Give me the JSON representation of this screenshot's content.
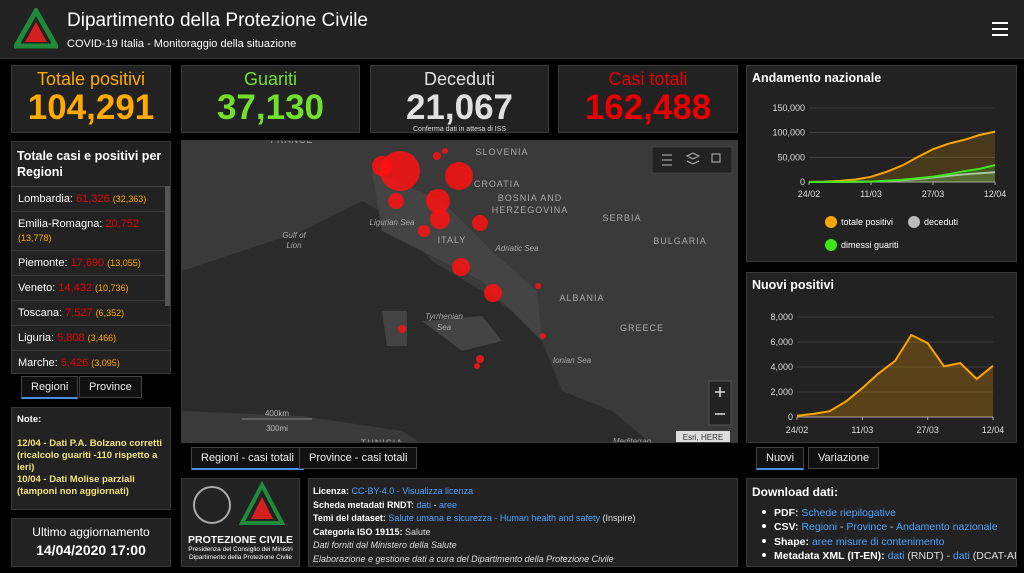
{
  "header": {
    "title": "Dipartimento della Protezione Civile",
    "subtitle": "COVID-19 Italia - Monitoraggio della situazione"
  },
  "cards": [
    {
      "label": "Totale positivi",
      "value": "104,291",
      "color": "#ffaa00"
    },
    {
      "label": "Guariti",
      "value": "37,130",
      "color": "#70e02a"
    },
    {
      "label": "Deceduti",
      "value": "21,067",
      "color": "#e0e0e0",
      "note": "Conferma dati in attesa di ISS"
    },
    {
      "label": "Casi totali",
      "value": "162,488",
      "color": "#e60000"
    }
  ],
  "regions_panel": {
    "title": "Totale casi e positivi per Regioni",
    "rows": [
      [
        "Lombardia:",
        "61,326",
        "(32,363)"
      ],
      [
        "Emilia-Romagna:",
        "20,752",
        "(13,778)"
      ],
      [
        "Piemonte:",
        "17,690",
        "(13,055)"
      ],
      [
        "Veneto:",
        "14,432",
        "(10,736)"
      ],
      [
        "Toscana:",
        "7,527",
        "(6,352)"
      ],
      [
        "Liguria:",
        "5,808",
        "(3,466)"
      ],
      [
        "Marche:",
        "5,426",
        "(3,095)"
      ]
    ],
    "tabs": [
      "Regioni",
      "Province"
    ]
  },
  "notes": {
    "title": "Note:",
    "lines": [
      "12/04 - Dati P.A. Bolzano corretti (ricalcolo guariti -110 rispetto a ieri)",
      "10/04 - Dati  Molise parziali (tamponi non aggiornati)"
    ]
  },
  "update": {
    "label": "Ultimo aggiornamento",
    "value": "14/04/2020 17:00"
  },
  "map": {
    "labels": [
      "FRANCE",
      "SLOVENIA",
      "CROATIA",
      "BOSNIA AND",
      "HERZEGOVINA",
      "SERBIA",
      "BULGARIA",
      "ITALY",
      "Adriatic Sea",
      "Ligurian Sea",
      "Gulf of",
      "Lion",
      "Tyrrhenian",
      "Sea",
      "ALBANIA",
      "GREECE",
      "Ionian Sea",
      "TUNISIA",
      "Mediterran"
    ],
    "scale": [
      "400km",
      "300mi"
    ],
    "attribution": "Esri, HERE",
    "tabs": [
      "Regioni - casi totali",
      "Province - casi totali"
    ]
  },
  "logo": {
    "name": "PROTEZIONE CIVILE",
    "lines": [
      "Presidenza del Consiglio dei Ministri",
      "Dipartimento della Protezione Civile"
    ]
  },
  "license": {
    "lines": [
      [
        {
          "t": "Licenza: ",
          "s": "b"
        },
        {
          "t": "CC-BY-4.0",
          "s": "a"
        },
        {
          "t": " - ",
          "s": "a"
        },
        {
          "t": "Visualizza licenza",
          "s": "a"
        }
      ],
      [
        {
          "t": "Scheda metadati RNDT: ",
          "s": "b"
        },
        {
          "t": "dati",
          "s": "a"
        },
        {
          "t": " - ",
          "s": "p"
        },
        {
          "t": "aree",
          "s": "a"
        }
      ],
      [
        {
          "t": "Temi del dataset: ",
          "s": "b"
        },
        {
          "t": "Salute umana e sicurezza - Human health and safety",
          "s": "a"
        },
        {
          "t": " (Inspire)",
          "s": "p"
        }
      ],
      [
        {
          "t": "Categoria ISO 19115: ",
          "s": "b"
        },
        {
          "t": "Salute",
          "s": "p"
        }
      ],
      [
        {
          "t": "Dati forniti dal Ministero della Salute",
          "s": "i"
        }
      ],
      [
        {
          "t": "Elaborazione e gestione dati a cura del Dipartimento della Protezione Civile",
          "s": "i"
        }
      ]
    ]
  },
  "downloads": {
    "title": "Download dati:",
    "items": [
      [
        {
          "t": "PDF: ",
          "s": "b"
        },
        {
          "t": "Schede riepilogative",
          "s": "a"
        }
      ],
      [
        {
          "t": "CSV: ",
          "s": "b"
        },
        {
          "t": "Regioni",
          "s": "a"
        },
        {
          "t": " - ",
          "s": "p"
        },
        {
          "t": "Province",
          "s": "a"
        },
        {
          "t": " - ",
          "s": "p"
        },
        {
          "t": "Andamento nazionale",
          "s": "a"
        }
      ],
      [
        {
          "t": "Shape: ",
          "s": "b"
        },
        {
          "t": "aree misure di contenimento",
          "s": "a"
        }
      ],
      [
        {
          "t": "Metadata XML (IT-EN): ",
          "s": "b"
        },
        {
          "t": "dati",
          "s": "a"
        },
        {
          "t": " (RNDT) - ",
          "s": "p"
        },
        {
          "t": "dati",
          "s": "a"
        },
        {
          "t": " (DCAT-AP-IT)",
          "s": "p"
        }
      ]
    ]
  },
  "chart_tabs": [
    "Nuovi",
    "Variazione"
  ],
  "chart_data": [
    {
      "type": "line",
      "title": "Andamento nazionale",
      "categories": [
        "24/02",
        null,
        null,
        null,
        "11/03",
        null,
        null,
        null,
        "27/03",
        null,
        null,
        null,
        "12/04"
      ],
      "series": [
        {
          "name": "totale positivi",
          "color": "#ffa500",
          "values": [
            221,
            885,
            2263,
            5061,
            10590,
            20603,
            33190,
            50418,
            66414,
            77635,
            85388,
            95262,
            102253
          ]
        },
        {
          "name": "deceduti",
          "color": "#bdbdbd",
          "values": [
            7,
            21,
            79,
            233,
            827,
            1809,
            3405,
            6077,
            9134,
            12428,
            15362,
            17669,
            19899
          ]
        },
        {
          "name": "dimessi guariti",
          "color": "#3ee61c",
          "values": [
            1,
            46,
            160,
            589,
            1045,
            2335,
            4440,
            7432,
            10950,
            15729,
            21815,
            26491,
            34211
          ]
        }
      ],
      "ylim": [
        0,
        150000
      ],
      "yticks": [
        0,
        {
          "value": 50000,
          "label": "50,000"
        },
        {
          "value": 100000,
          "label": "100,000"
        },
        {
          "value": 150000,
          "label": "150,000"
        }
      ],
      "grid": true
    },
    {
      "type": "area",
      "title": "Nuovi positivi",
      "categories": [
        "24/02",
        null,
        null,
        null,
        "11/03",
        null,
        null,
        null,
        "27/03",
        null,
        null,
        null,
        "12/04"
      ],
      "series": [
        {
          "name": "Nuovi",
          "color": "#ffa500",
          "values": [
            93,
            250,
            466,
            1247,
            2313,
            3497,
            4480,
            6557,
            5909,
            4053,
            4316,
            3039,
            4092
          ]
        }
      ],
      "ylim": [
        0,
        8000
      ],
      "yticks": [
        0,
        {
          "value": 2000,
          "label": "2,000"
        },
        {
          "value": 4000,
          "label": "4,000"
        },
        {
          "value": 6000,
          "label": "6,000"
        },
        {
          "value": 8000,
          "label": "8,000"
        }
      ],
      "grid": true
    }
  ]
}
